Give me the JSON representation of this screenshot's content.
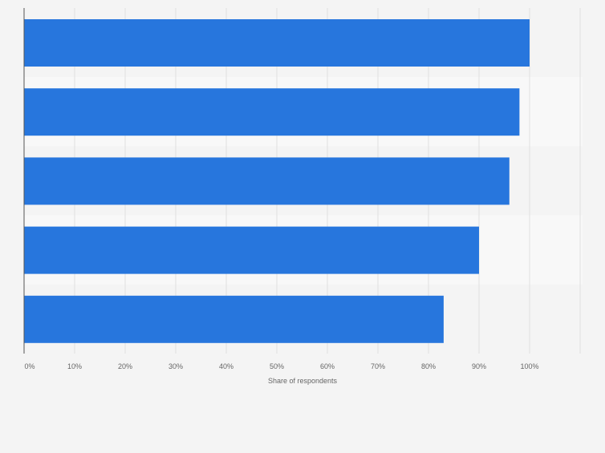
{
  "chart_data": {
    "type": "bar",
    "orientation": "horizontal",
    "categories": [
      "",
      "",
      "",
      "",
      ""
    ],
    "values": [
      100,
      98,
      96,
      90,
      83
    ],
    "xlabel": "Share of respondents",
    "ylabel": "",
    "xlim": [
      0,
      110
    ],
    "xticks": [
      0,
      10,
      20,
      30,
      40,
      50,
      60,
      70,
      80,
      90,
      100
    ],
    "xtick_labels": [
      "0%",
      "10%",
      "20%",
      "30%",
      "40%",
      "50%",
      "60%",
      "70%",
      "80%",
      "90%",
      "100%"
    ],
    "grid": true,
    "legend": "none",
    "bar_color": "#2776dd",
    "band_colors": [
      "#f4f4f4",
      "#f8f8f8"
    ]
  }
}
